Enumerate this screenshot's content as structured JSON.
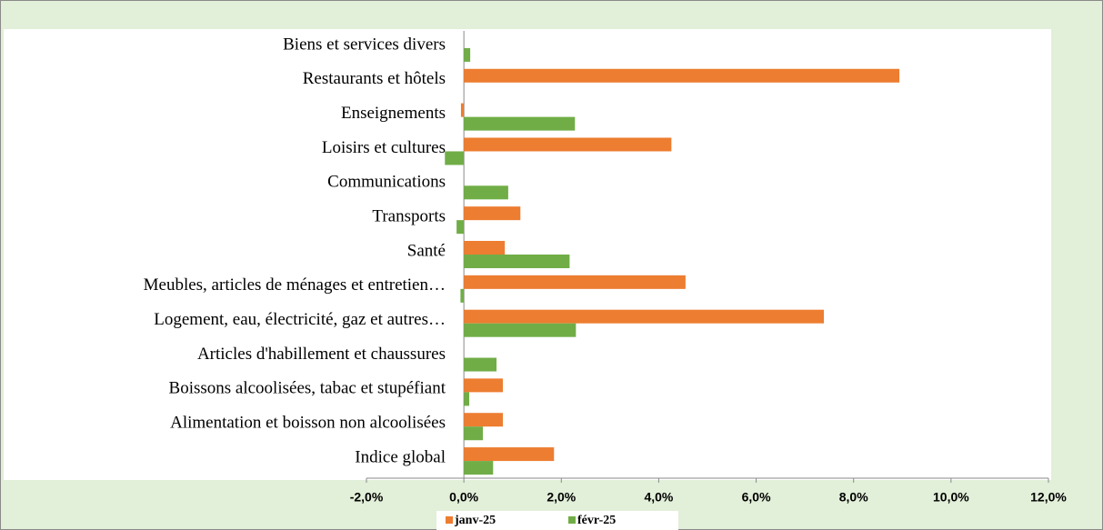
{
  "chart_data": {
    "type": "hbar",
    "categories": [
      "Indice global",
      "Alimentation et boisson non alcoolisées",
      "Boissons alcoolisées, tabac et stupéfiant",
      "Articles d'habillement et chaussures",
      "Logement, eau, électricité, gaz et autres…",
      "Meubles, articles de ménages et entretien…",
      "Santé",
      "Transports",
      "Communications",
      "Loisirs et cultures",
      "Enseignements",
      "Restaurants et hôtels",
      "Biens et services divers"
    ],
    "series": [
      {
        "name": "janv-25",
        "color": "#ed7d31",
        "values": [
          1.85,
          0.8,
          0.8,
          null,
          7.39,
          4.55,
          0.84,
          1.16,
          null,
          4.26,
          -0.06,
          8.94,
          null
        ]
      },
      {
        "name": "févr-25",
        "color": "#70ad47",
        "values": [
          0.6,
          0.39,
          0.11,
          0.67,
          2.3,
          -0.07,
          2.17,
          -0.15,
          0.91,
          -0.39,
          2.28,
          null,
          0.13
        ]
      }
    ],
    "xlim": [
      -2,
      12
    ],
    "xticks": [
      {
        "value": -2,
        "label": "-2,0%"
      },
      {
        "value": 0,
        "label": "0,0%"
      },
      {
        "value": 2,
        "label": "2,0%"
      },
      {
        "value": 4,
        "label": "4,0%"
      },
      {
        "value": 6,
        "label": "6,0%"
      },
      {
        "value": 8,
        "label": "8,0%"
      },
      {
        "value": 10,
        "label": "10,0%"
      },
      {
        "value": 12,
        "label": "12,0%"
      }
    ],
    "legend": "bottom"
  }
}
